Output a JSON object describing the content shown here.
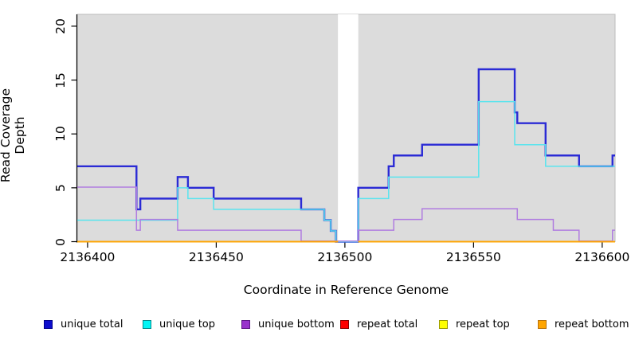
{
  "chart_data": {
    "type": "line",
    "subtype": "step-coverage-plot",
    "title": "",
    "xlabel": "Coordinate in Reference Genome",
    "ylabel": "Read Coverage Depth",
    "xlim": [
      2136396,
      2136605
    ],
    "ylim": [
      0,
      21.1
    ],
    "x_ticks": [
      2136400,
      2136450,
      2136500,
      2136550,
      2136600
    ],
    "y_ticks": [
      0,
      5,
      10,
      15,
      20
    ],
    "grid": false,
    "panel_background": "#dcdcdc",
    "panel_border": "#bdbdbd",
    "masked_region": {
      "x_start": 2136497.3,
      "x_end": 2136505.2,
      "color": "#ffffff"
    },
    "series": [
      {
        "name": "unique total",
        "color": "#2b2bd5",
        "line_width": 2.4,
        "segments": [
          [
            2136396,
            2136419,
            7
          ],
          [
            2136419,
            2136420.5,
            3
          ],
          [
            2136420.5,
            2136435,
            4
          ],
          [
            2136435,
            2136439,
            6
          ],
          [
            2136439,
            2136449,
            5
          ],
          [
            2136449,
            2136483,
            4
          ],
          [
            2136483,
            2136492,
            3
          ],
          [
            2136492,
            2136494.5,
            2
          ],
          [
            2136494.5,
            2136496.5,
            1
          ],
          [
            2136496.5,
            2136505.2,
            0
          ],
          [
            2136505.2,
            2136517,
            5
          ],
          [
            2136517,
            2136519,
            7
          ],
          [
            2136519,
            2136530,
            8
          ],
          [
            2136530,
            2136552,
            9
          ],
          [
            2136552,
            2136566,
            16
          ],
          [
            2136566,
            2136567,
            12
          ],
          [
            2136567,
            2136578,
            11
          ],
          [
            2136578,
            2136591,
            8
          ],
          [
            2136591,
            2136604,
            7
          ],
          [
            2136604,
            2136605,
            8
          ]
        ]
      },
      {
        "name": "unique top",
        "color": "#59e4ee",
        "line_width": 1.5,
        "segments": [
          [
            2136396,
            2136435,
            2
          ],
          [
            2136435,
            2136439,
            5
          ],
          [
            2136439,
            2136449,
            4
          ],
          [
            2136449,
            2136492,
            3
          ],
          [
            2136492,
            2136494.5,
            2
          ],
          [
            2136494.5,
            2136496.5,
            1
          ],
          [
            2136496.5,
            2136505.2,
            0
          ],
          [
            2136505.2,
            2136517,
            4
          ],
          [
            2136517,
            2136552,
            6
          ],
          [
            2136552,
            2136566,
            13
          ],
          [
            2136566,
            2136578,
            9
          ],
          [
            2136578,
            2136605,
            7
          ]
        ]
      },
      {
        "name": "unique bottom",
        "color": "#b07de0",
        "line_width": 1.5,
        "segments": [
          [
            2136396,
            2136419,
            5
          ],
          [
            2136419,
            2136420.5,
            1
          ],
          [
            2136420.5,
            2136435,
            2
          ],
          [
            2136435,
            2136483,
            1
          ],
          [
            2136483,
            2136505.2,
            0
          ],
          [
            2136505.2,
            2136519,
            1
          ],
          [
            2136519,
            2136530,
            2
          ],
          [
            2136530,
            2136567,
            3
          ],
          [
            2136567,
            2136581,
            2
          ],
          [
            2136581,
            2136591,
            1
          ],
          [
            2136591,
            2136604,
            0
          ],
          [
            2136604,
            2136605,
            1
          ]
        ]
      },
      {
        "name": "repeat total",
        "color": "#e00000",
        "line_width": 1.5,
        "segments": [
          [
            2136396,
            2136497.3,
            0
          ],
          [
            2136505.2,
            2136605,
            0
          ]
        ]
      },
      {
        "name": "repeat top",
        "color": "#ffff00",
        "line_width": 1.5,
        "segments": [
          [
            2136396,
            2136497.3,
            0
          ],
          [
            2136505.2,
            2136605,
            0
          ]
        ]
      },
      {
        "name": "repeat bottom",
        "color": "#ffa500",
        "line_width": 1.8,
        "segments": [
          [
            2136396,
            2136497.3,
            0
          ],
          [
            2136505.2,
            2136605,
            0
          ]
        ]
      }
    ],
    "legend": {
      "position": "bottom",
      "items": [
        {
          "label": "unique total",
          "fill": "#0d0dcd",
          "border": "#00008b"
        },
        {
          "label": "unique top",
          "fill": "#00f5f5",
          "border": "#008b8b"
        },
        {
          "label": "unique bottom",
          "fill": "#9932cc",
          "border": "#5e1687"
        },
        {
          "label": "repeat total",
          "fill": "#ff0000",
          "border": "#8b0000"
        },
        {
          "label": "repeat top",
          "fill": "#ffff00",
          "border": "#9a9a00"
        },
        {
          "label": "repeat bottom",
          "fill": "#ffa500",
          "border": "#b8720b"
        }
      ]
    }
  }
}
